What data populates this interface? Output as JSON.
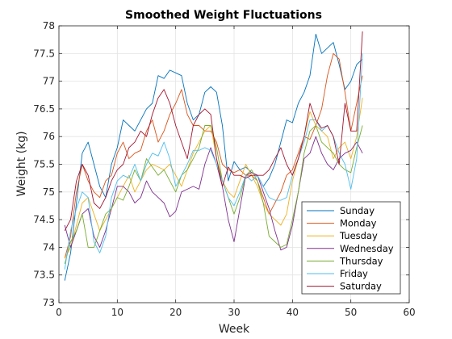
{
  "chart_data": {
    "type": "line",
    "title": "Smoothed Weight Fluctuations",
    "xlabel": "Week",
    "ylabel": "Weight (kg)",
    "xlim": [
      0,
      60
    ],
    "ylim": [
      73,
      78
    ],
    "xticks": [
      0,
      10,
      20,
      30,
      40,
      50,
      60
    ],
    "yticks": [
      73,
      73.5,
      74,
      74.5,
      75,
      75.5,
      76,
      76.5,
      77,
      77.5,
      78
    ],
    "xtick_labels": [
      "0",
      "10",
      "20",
      "30",
      "40",
      "50",
      "60"
    ],
    "ytick_labels": [
      "73",
      "73.5",
      "74",
      "74.5",
      "75",
      "75.5",
      "76",
      "76.5",
      "77",
      "77.5",
      "78"
    ],
    "grid": true,
    "legend_position": "bottom-right",
    "x": [
      1,
      2,
      3,
      4,
      5,
      6,
      7,
      8,
      9,
      10,
      11,
      12,
      13,
      14,
      15,
      16,
      17,
      18,
      19,
      20,
      21,
      22,
      23,
      24,
      25,
      26,
      27,
      28,
      29,
      30,
      31,
      32,
      33,
      34,
      35,
      36,
      37,
      38,
      39,
      40,
      41,
      42,
      43,
      44,
      45,
      46,
      47,
      48,
      49,
      50,
      51,
      52
    ],
    "series": [
      {
        "name": "Sunday",
        "color": "#0072BD",
        "values": [
          73.4,
          73.9,
          74.8,
          75.7,
          75.9,
          75.5,
          75.1,
          74.9,
          75.5,
          75.8,
          76.3,
          76.2,
          76.1,
          76.3,
          76.5,
          76.6,
          77.1,
          77.05,
          77.2,
          77.15,
          77.1,
          76.6,
          76.3,
          76.4,
          76.8,
          76.9,
          76.8,
          76.2,
          75.2,
          75.55,
          75.4,
          75.45,
          75.35,
          75.3,
          75.1,
          75.25,
          75.5,
          75.9,
          76.3,
          76.25,
          76.6,
          76.8,
          77.1,
          77.85,
          77.5,
          77.6,
          77.7,
          77.3,
          76.85,
          77.0,
          77.3,
          77.4
        ]
      },
      {
        "name": "Monday",
        "color": "#D95319",
        "values": [
          73.8,
          74.2,
          75.0,
          75.5,
          75.2,
          75.0,
          74.9,
          75.2,
          75.3,
          75.7,
          75.9,
          75.6,
          75.7,
          75.75,
          76.1,
          76.3,
          75.9,
          76.1,
          76.4,
          76.6,
          76.85,
          76.4,
          76.2,
          76.2,
          76.1,
          76.1,
          75.9,
          75.5,
          75.4,
          75.35,
          75.4,
          75.3,
          75.3,
          75.2,
          74.9,
          74.6,
          74.8,
          75.0,
          75.3,
          75.4,
          75.7,
          76.0,
          75.95,
          76.2,
          76.5,
          77.1,
          77.5,
          77.4,
          76.8,
          76.1,
          76.6,
          77.1
        ]
      },
      {
        "name": "Tuesday",
        "color": "#EDB120",
        "values": [
          73.8,
          74.0,
          74.4,
          74.8,
          74.9,
          74.6,
          74.3,
          74.5,
          74.7,
          74.9,
          75.1,
          75.3,
          75.0,
          75.2,
          75.4,
          75.5,
          75.45,
          75.4,
          75.5,
          75.3,
          75.1,
          75.4,
          75.7,
          75.9,
          76.1,
          76.2,
          75.6,
          75.2,
          75.0,
          74.9,
          75.2,
          75.5,
          75.3,
          75.1,
          74.8,
          74.6,
          74.5,
          74.4,
          74.6,
          75.2,
          75.6,
          76.0,
          76.45,
          76.2,
          76.1,
          76.0,
          75.6,
          75.8,
          75.9,
          75.6,
          76.0,
          76.7
        ]
      },
      {
        "name": "Wednesday",
        "color": "#7E2F8E",
        "values": [
          74.4,
          74.0,
          74.3,
          74.6,
          74.7,
          74.2,
          74.0,
          74.3,
          74.7,
          75.1,
          75.1,
          75.0,
          74.8,
          74.9,
          75.2,
          75.0,
          74.9,
          74.8,
          74.55,
          74.65,
          75.0,
          75.05,
          75.1,
          75.05,
          75.5,
          75.8,
          75.5,
          75.1,
          74.5,
          74.1,
          74.7,
          75.3,
          75.35,
          75.3,
          75.0,
          74.7,
          74.3,
          73.95,
          74.0,
          74.4,
          75.0,
          75.6,
          75.7,
          76.0,
          75.7,
          75.5,
          75.4,
          75.6,
          75.7,
          75.75,
          75.9,
          75.7
        ]
      },
      {
        "name": "Thursday",
        "color": "#77AC30",
        "values": [
          73.7,
          74.1,
          74.3,
          74.6,
          74.0,
          74.0,
          74.3,
          74.6,
          74.7,
          74.9,
          74.85,
          75.1,
          75.4,
          75.2,
          75.6,
          75.45,
          75.3,
          75.4,
          75.2,
          75.0,
          75.3,
          75.4,
          75.6,
          75.8,
          76.2,
          76.2,
          75.8,
          75.2,
          74.9,
          74.6,
          74.9,
          75.3,
          75.4,
          75.2,
          74.8,
          74.2,
          74.1,
          74.0,
          74.05,
          74.5,
          75.0,
          75.7,
          76.1,
          76.2,
          75.9,
          75.8,
          75.7,
          75.5,
          75.4,
          75.35,
          75.8,
          76.2
        ]
      },
      {
        "name": "Friday",
        "color": "#4DBEEE",
        "values": [
          73.6,
          74.3,
          74.7,
          75.0,
          74.9,
          74.1,
          73.9,
          74.2,
          74.9,
          75.2,
          75.3,
          75.25,
          75.5,
          75.2,
          75.5,
          75.7,
          75.65,
          75.9,
          75.6,
          75.1,
          75.3,
          75.5,
          75.75,
          75.75,
          75.8,
          75.75,
          75.5,
          75.2,
          74.9,
          74.75,
          75.0,
          75.3,
          75.2,
          75.3,
          75.1,
          74.9,
          74.85,
          74.85,
          74.9,
          75.3,
          75.6,
          75.9,
          76.3,
          76.3,
          76.1,
          76.2,
          76.0,
          75.7,
          75.5,
          75.05,
          75.6,
          77.5
        ]
      },
      {
        "name": "Saturday",
        "color": "#A2142F",
        "values": [
          74.3,
          74.5,
          75.2,
          75.5,
          75.3,
          74.8,
          74.7,
          74.9,
          75.2,
          75.4,
          75.5,
          75.8,
          75.9,
          76.1,
          76.0,
          76.4,
          76.7,
          76.85,
          76.6,
          76.2,
          75.9,
          75.6,
          76.2,
          76.4,
          76.5,
          76.4,
          75.6,
          75.1,
          75.45,
          75.3,
          75.3,
          75.25,
          75.3,
          75.3,
          75.3,
          75.4,
          75.6,
          75.8,
          75.5,
          75.3,
          75.6,
          76.0,
          76.6,
          76.3,
          76.15,
          76.2,
          76.0,
          75.5,
          76.6,
          76.1,
          76.1,
          77.9
        ]
      }
    ]
  }
}
